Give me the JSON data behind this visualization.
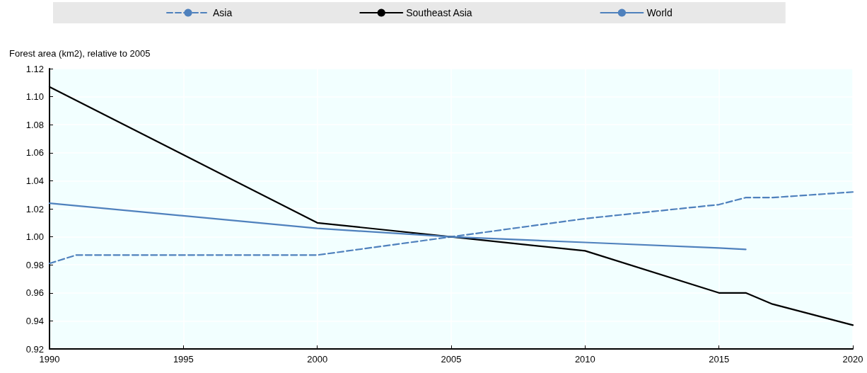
{
  "chart_data": {
    "type": "line",
    "ylabel": "Forest area (km2), relative to 2005",
    "xlim": [
      1990,
      2020
    ],
    "xticks": [
      1990,
      1995,
      2000,
      2005,
      2010,
      2015,
      2020
    ],
    "ylim": [
      0.92,
      1.12
    ],
    "yticks": [
      0.92,
      0.94,
      0.96,
      0.98,
      {
        "value": 1,
        "label": "1.00"
      },
      1.02,
      1.04,
      1.06,
      1.08,
      {
        "value": 1.1,
        "label": "1.10"
      },
      1.12
    ],
    "grid": true,
    "legend": "top",
    "marker": "none",
    "series": [
      {
        "name": "Asia",
        "color": "#4f81bd",
        "line_style": "dashed",
        "x": [
          1990,
          1991,
          2000,
          2005,
          2010,
          2015,
          2016,
          2017,
          2020
        ],
        "values": [
          0.981,
          0.987,
          0.987,
          1.0,
          1.013,
          1.023,
          1.028,
          1.028,
          1.032
        ]
      },
      {
        "name": "Southeast Asia",
        "color": "#000000",
        "line_style": "solid",
        "x": [
          1990,
          2000,
          2005,
          2010,
          2015,
          2016,
          2017,
          2020
        ],
        "values": [
          1.107,
          1.01,
          1.0,
          0.99,
          0.96,
          0.96,
          0.952,
          0.937
        ]
      },
      {
        "name": "World",
        "color": "#4f81bd",
        "line_style": "solid",
        "x": [
          1990,
          2000,
          2005,
          2010,
          2015,
          2016
        ],
        "values": [
          1.024,
          1.006,
          1.0,
          0.996,
          0.992,
          0.991
        ]
      }
    ]
  }
}
